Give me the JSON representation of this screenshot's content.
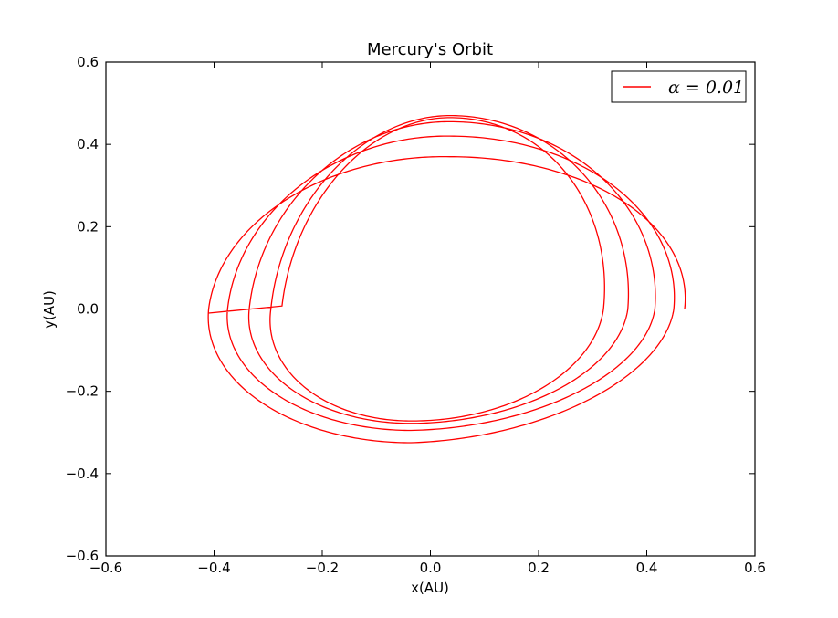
{
  "chart_data": {
    "type": "line",
    "title": "Mercury's Orbit",
    "xlabel": "x(AU)",
    "ylabel": "y(AU)",
    "xlim": [
      -0.6,
      0.6
    ],
    "ylim": [
      -0.6,
      0.6
    ],
    "xticks": [
      -0.6,
      -0.4,
      -0.2,
      0.0,
      0.2,
      0.4,
      0.6
    ],
    "yticks": [
      -0.6,
      -0.4,
      -0.2,
      0.0,
      0.2,
      0.4,
      0.6
    ],
    "xtick_labels": [
      "−0.6",
      "−0.4",
      "−0.2",
      "0.0",
      "0.2",
      "0.4",
      "0.6"
    ],
    "ytick_labels": [
      "−0.6",
      "−0.4",
      "−0.2",
      "0.0",
      "0.2",
      "0.4",
      "0.6"
    ],
    "grid": false,
    "legend_position": "top-right",
    "series": [
      {
        "name": "α = 0.01",
        "color": "#ff0000",
        "orbit": {
          "start": [
            0.47,
            0.0
          ],
          "end": [
            -0.41,
            -0.01
          ],
          "revolutions": 4.5,
          "turns": [
            {
              "right_x": 0.47,
              "left_x": -0.41,
              "top_y": 0.37,
              "bottom_y": -0.325
            },
            {
              "right_x": 0.45,
              "left_x": -0.375,
              "top_y": 0.42,
              "bottom_y": -0.295
            },
            {
              "right_x": 0.415,
              "left_x": -0.335,
              "top_y": 0.455,
              "bottom_y": -0.278
            },
            {
              "right_x": 0.365,
              "left_x": -0.295,
              "top_y": 0.47,
              "bottom_y": -0.272
            },
            {
              "right_x": 0.32,
              "left_x": -0.275,
              "top_y": 0.465,
              "bottom_y": -0.275
            }
          ]
        }
      }
    ]
  }
}
